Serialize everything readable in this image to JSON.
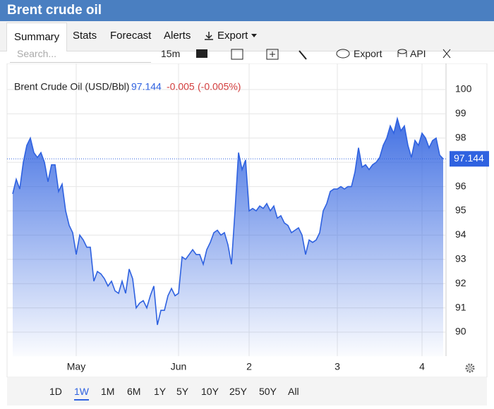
{
  "header": {
    "title": "Brent crude oil"
  },
  "tabs": [
    "Summary",
    "Stats",
    "Forecast",
    "Alerts",
    "Export"
  ],
  "toolbar": {
    "search_placeholder": "Search...",
    "interval": "15m",
    "export": "Export",
    "api": "API"
  },
  "chart_data": {
    "type": "area",
    "series": [
      {
        "name": "Brent Crude Oil (USD/Bbl)",
        "color": "#2f62e0",
        "values": [
          95.7,
          96.3,
          95.9,
          97.0,
          97.7,
          98.0,
          97.4,
          97.2,
          97.4,
          97.0,
          96.2,
          96.9,
          96.9,
          95.8,
          96.1,
          95.0,
          94.4,
          94.1,
          93.2,
          94.0,
          93.8,
          93.5,
          93.5,
          92.1,
          92.5,
          92.4,
          92.2,
          91.9,
          92.1,
          91.7,
          91.6,
          92.1,
          91.6,
          92.6,
          92.2,
          91.0,
          91.2,
          91.3,
          91.0,
          91.5,
          91.9,
          90.3,
          90.9,
          90.9,
          91.5,
          91.8,
          91.5,
          91.6,
          93.1,
          93.0,
          93.2,
          93.4,
          93.2,
          93.2,
          92.8,
          93.4,
          93.7,
          94.1,
          94.2,
          94.0,
          94.1,
          93.6,
          92.8,
          95.0,
          97.4,
          96.7,
          97.1,
          95.0,
          95.1,
          95.0,
          95.2,
          95.1,
          95.3,
          95.0,
          95.2,
          94.7,
          94.8,
          94.5,
          94.4,
          94.1,
          94.2,
          94.3,
          94.0,
          93.2,
          93.8,
          93.7,
          93.8,
          94.1,
          95.0,
          95.3,
          95.8,
          95.9,
          95.9,
          96.0,
          95.9,
          96.0,
          96.0,
          96.6,
          97.6,
          96.8,
          96.9,
          96.7,
          96.9,
          97.0,
          97.2,
          97.7,
          98.0,
          98.5,
          98.2,
          98.8,
          98.3,
          98.5,
          97.7,
          97.2,
          97.9,
          97.7,
          98.2,
          98.0,
          97.6,
          97.9,
          98.0,
          97.3,
          97.144
        ]
      }
    ],
    "change": "-0.005",
    "change_percent": "(-0.005%)",
    "categories": [
      null,
      null,
      null,
      null,
      null,
      null,
      null,
      null,
      null,
      null,
      null,
      null,
      null,
      null,
      null,
      null,
      null,
      null,
      "May",
      null,
      null,
      null,
      null,
      null,
      null,
      null,
      null,
      null,
      null,
      null,
      null,
      null,
      null,
      null,
      null,
      null,
      null,
      null,
      null,
      null,
      null,
      null,
      null,
      null,
      null,
      null,
      null,
      "Jun",
      null,
      null,
      null,
      null,
      null,
      null,
      null,
      null,
      null,
      null,
      null,
      null,
      null,
      null,
      null,
      null,
      null,
      null,
      null,
      "2",
      null,
      null,
      null,
      null,
      null,
      null,
      null,
      null,
      null,
      null,
      null,
      null,
      null,
      null,
      null,
      null,
      null,
      null,
      null,
      null,
      null,
      null,
      null,
      null,
      "3",
      null,
      null,
      null,
      null,
      null,
      null,
      null,
      null,
      null,
      null,
      null,
      null,
      null,
      null,
      null,
      null,
      null,
      null,
      null,
      null,
      null,
      null,
      null,
      "4",
      null,
      null,
      null,
      null,
      null,
      null
    ],
    "ylim": [
      89,
      101
    ],
    "yticks": [
      90,
      91,
      92,
      93,
      94,
      95,
      96,
      97,
      98,
      99,
      100
    ],
    "grid": true
  },
  "ranges": [
    "1D",
    "1W",
    "1M",
    "6M",
    "1Y",
    "5Y",
    "10Y",
    "25Y",
    "50Y",
    "All"
  ]
}
